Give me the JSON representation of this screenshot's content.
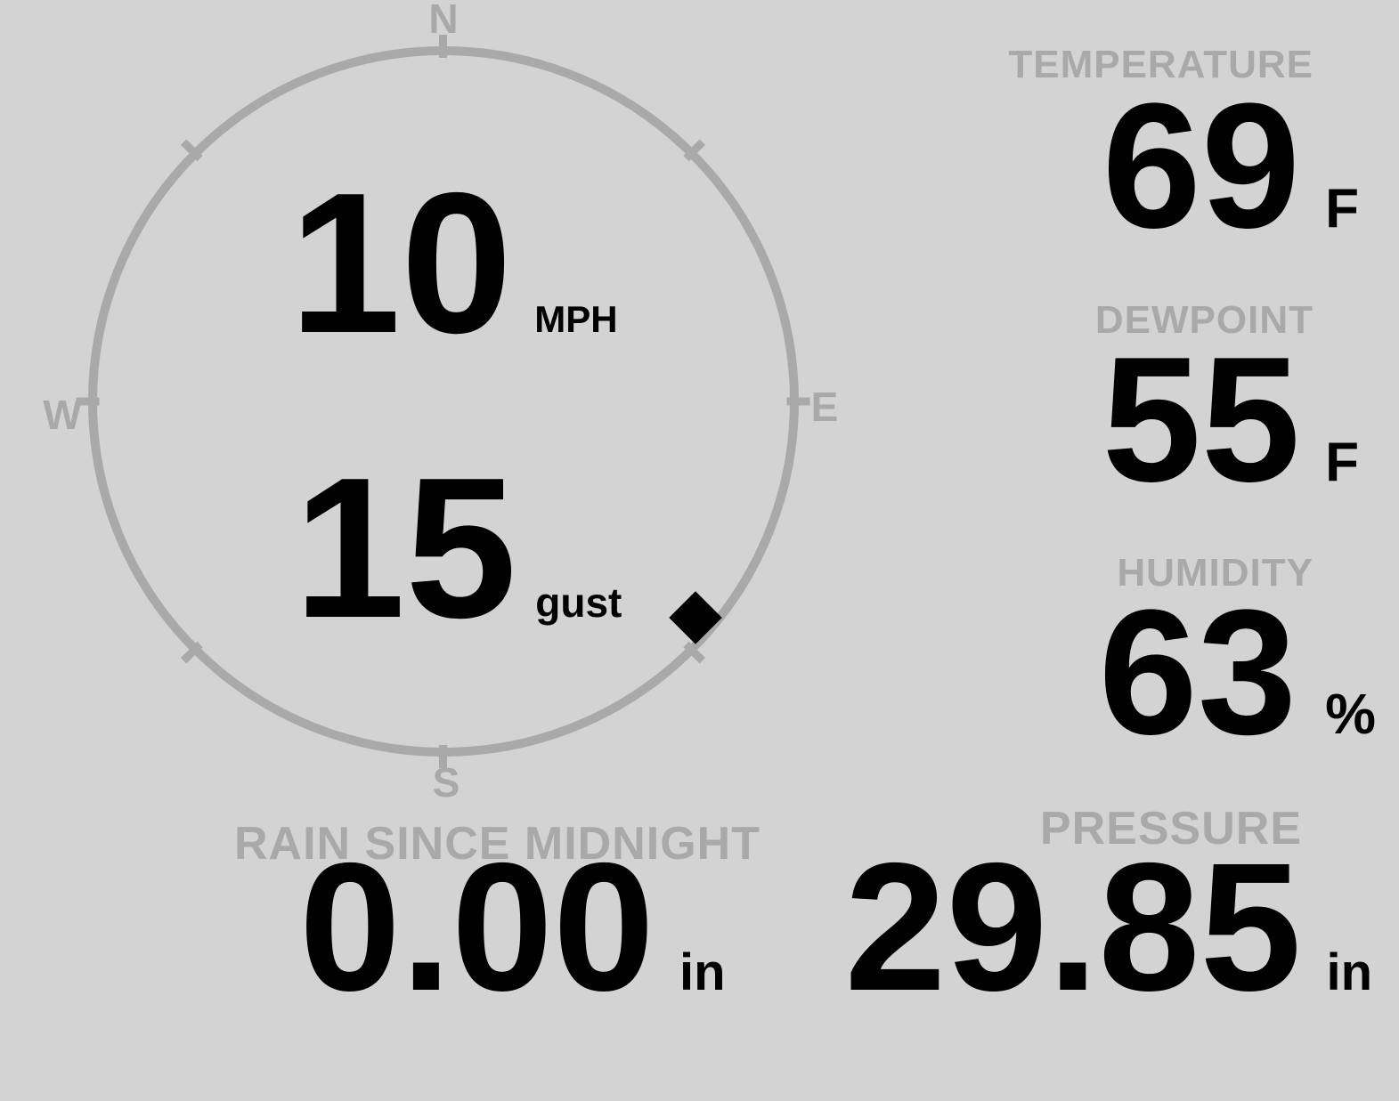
{
  "colors": {
    "background": "#d3d3d3",
    "muted_gray": "#a9a9a9",
    "ink": "#000000"
  },
  "compass": {
    "points": {
      "north": "N",
      "east": "E",
      "south": "S",
      "west": "W"
    },
    "wind_speed": {
      "value": "10",
      "unit": "MPH"
    },
    "wind_gust": {
      "value": "15",
      "unit": "gust"
    },
    "wind_direction": {
      "bearing_deg": 130,
      "marker": "diamond"
    }
  },
  "metrics": {
    "temperature": {
      "label": "TEMPERATURE",
      "value": "69",
      "unit": "F"
    },
    "dewpoint": {
      "label": "DEWPOINT",
      "value": "55",
      "unit": "F"
    },
    "humidity": {
      "label": "HUMIDITY",
      "value": "63",
      "unit": "%"
    },
    "rain_since_midnight": {
      "label": "RAIN SINCE MIDNIGHT",
      "value": "0.00",
      "unit": "in"
    },
    "pressure": {
      "label": "PRESSURE",
      "value": "29.85",
      "unit": "in"
    }
  }
}
